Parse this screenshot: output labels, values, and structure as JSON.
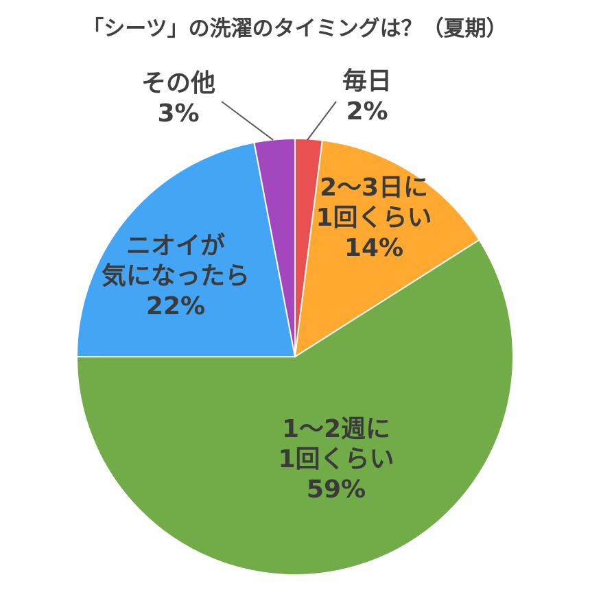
{
  "chart_data": {
    "type": "pie",
    "title": "「シーツ」の洗濯のタイミングは？（夏期）",
    "slices": [
      {
        "lines": [
          "毎日"
        ],
        "pct_label": "2%",
        "value": 2,
        "color": "#e9504f"
      },
      {
        "lines": [
          "2～3日に",
          "1回くらい"
        ],
        "pct_label": "14%",
        "value": 14,
        "color": "#ffa930"
      },
      {
        "lines": [
          "1～2週に",
          "1回くらい"
        ],
        "pct_label": "59%",
        "value": 59,
        "color": "#71ac48"
      },
      {
        "lines": [
          "ニオイが",
          "気になったら"
        ],
        "pct_label": "22%",
        "value": 22,
        "color": "#45a5f5"
      },
      {
        "lines": [
          "その他"
        ],
        "pct_label": "3%",
        "value": 3,
        "color": "#a347bf"
      }
    ]
  }
}
